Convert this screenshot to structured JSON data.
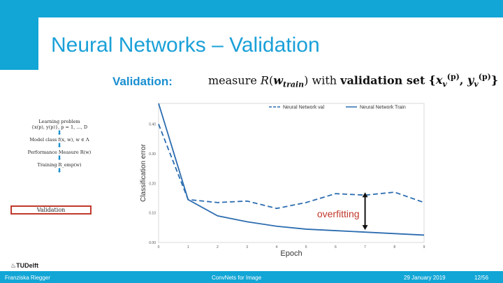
{
  "slide": {
    "title": "Neural Networks – Validation",
    "label": "Validation:",
    "formula": {
      "measure_word": "measure",
      "R": "R",
      "w": "w",
      "w_sub": "train",
      "with_word": "with",
      "set_word": "validation set",
      "x": "x",
      "y": "y",
      "v": "v",
      "p": "(p)"
    }
  },
  "flowchart": {
    "items": [
      "Learning problem",
      "{x(p), y(p)}, p = 1, …, D",
      "Model class f(x, w), w ∈ Λ",
      "Performance Measure R(w)",
      "Training R_emp(w)"
    ],
    "highlighted": "Validation",
    "highlight_color": "#c0392b"
  },
  "chart_data": {
    "type": "line",
    "xlabel": "Epoch",
    "ylabel": "Classification error",
    "x": [
      0,
      1,
      2,
      3,
      4,
      5,
      6,
      7,
      8,
      9
    ],
    "xlim": [
      0,
      9
    ],
    "ylim": [
      0.0,
      0.47
    ],
    "yticks": [
      0.0,
      0.1,
      0.2,
      0.3,
      0.4
    ],
    "series": [
      {
        "name": "Neural Network val",
        "style": "dashed",
        "color": "#2c6db0",
        "values": [
          0.4,
          0.145,
          0.135,
          0.14,
          0.115,
          0.135,
          0.165,
          0.16,
          0.17,
          0.135
        ]
      },
      {
        "name": "Neural Network Train",
        "style": "solid",
        "color": "#2c6db0",
        "values": [
          0.47,
          0.145,
          0.09,
          0.07,
          0.055,
          0.045,
          0.04,
          0.035,
          0.03,
          0.025
        ]
      }
    ],
    "legend_position": "top",
    "annotation": {
      "text": "overfitting",
      "color": "#c0392b",
      "at_epoch": 7
    }
  },
  "footer": {
    "author": "Franziska Riegger",
    "course": "ConvNets for Image",
    "date": "29 January 2019",
    "page": "12/56",
    "logo": "TUDelft"
  }
}
